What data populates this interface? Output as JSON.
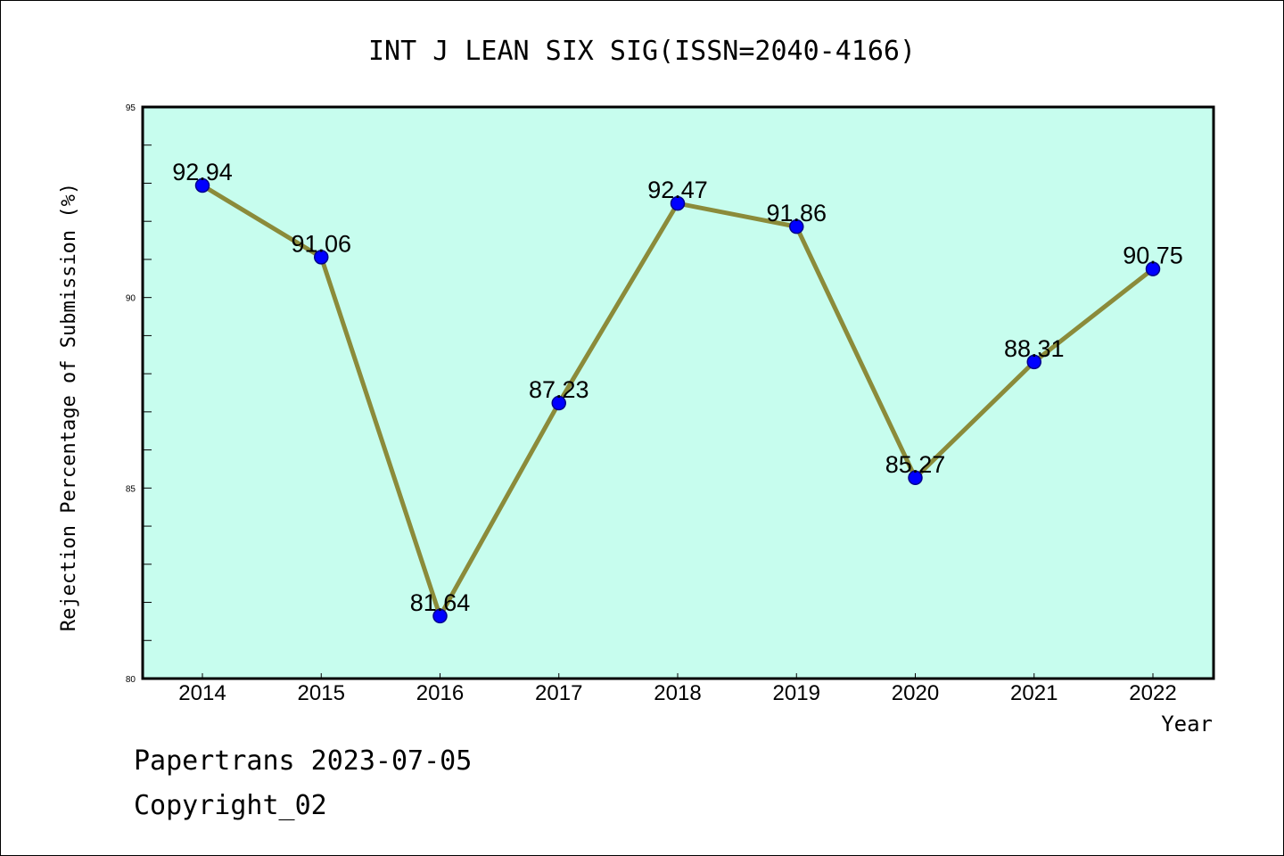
{
  "chart_data": {
    "type": "line",
    "title": "INT J LEAN SIX SIG(ISSN=2040-4166)",
    "xlabel": "Year",
    "ylabel": "Rejection Percentage of Submission (%)",
    "categories": [
      "2014",
      "2015",
      "2016",
      "2017",
      "2018",
      "2019",
      "2020",
      "2021",
      "2022"
    ],
    "values": [
      92.94,
      91.06,
      81.64,
      87.23,
      92.47,
      91.86,
      85.27,
      88.31,
      90.75
    ],
    "data_labels": [
      "92.94",
      "91.06",
      "81.64",
      "87.23",
      "92.47",
      "91.86",
      "85.27",
      "88.31",
      "90.75"
    ],
    "ylim": [
      80,
      95
    ],
    "yticks": [
      80,
      85,
      90,
      95
    ],
    "ytick_labels": [
      "80",
      "85",
      "90",
      "95"
    ],
    "grid": false,
    "legend": "none",
    "colors": {
      "plot_background": "#c7fdee",
      "line": "#8b8b3a",
      "marker_fill": "#0000ff",
      "marker_edge": "#00008b"
    }
  },
  "footer": {
    "line1": "Papertrans 2023-07-05",
    "line2": "Copyright_02"
  }
}
